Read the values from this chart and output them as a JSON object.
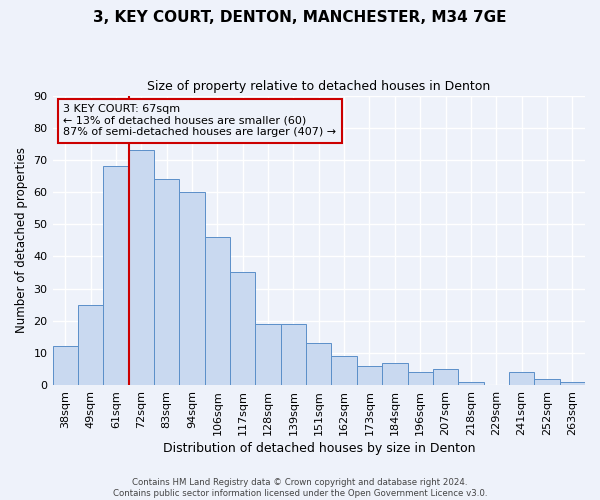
{
  "title": "3, KEY COURT, DENTON, MANCHESTER, M34 7GE",
  "subtitle": "Size of property relative to detached houses in Denton",
  "xlabel": "Distribution of detached houses by size in Denton",
  "ylabel": "Number of detached properties",
  "bar_labels": [
    "38sqm",
    "49sqm",
    "61sqm",
    "72sqm",
    "83sqm",
    "94sqm",
    "106sqm",
    "117sqm",
    "128sqm",
    "139sqm",
    "151sqm",
    "162sqm",
    "173sqm",
    "184sqm",
    "196sqm",
    "207sqm",
    "218sqm",
    "229sqm",
    "241sqm",
    "252sqm",
    "263sqm"
  ],
  "bar_values": [
    12,
    25,
    68,
    73,
    64,
    60,
    46,
    35,
    19,
    19,
    13,
    9,
    6,
    7,
    4,
    5,
    1,
    0,
    4,
    2,
    1
  ],
  "bar_color": "#c9d9f0",
  "bar_edge_color": "#5b8fc9",
  "vline_index": 2.5,
  "vline_color": "#cc0000",
  "annotation_text_line1": "3 KEY COURT: 67sqm",
  "annotation_text_line2": "← 13% of detached houses are smaller (60)",
  "annotation_text_line3": "87% of semi-detached houses are larger (407) →",
  "annotation_box_color": "#cc0000",
  "ylim": [
    0,
    90
  ],
  "yticks": [
    0,
    10,
    20,
    30,
    40,
    50,
    60,
    70,
    80,
    90
  ],
  "background_color": "#eef2fa",
  "grid_color": "#ffffff",
  "footer_line1": "Contains HM Land Registry data © Crown copyright and database right 2024.",
  "footer_line2": "Contains public sector information licensed under the Open Government Licence v3.0."
}
